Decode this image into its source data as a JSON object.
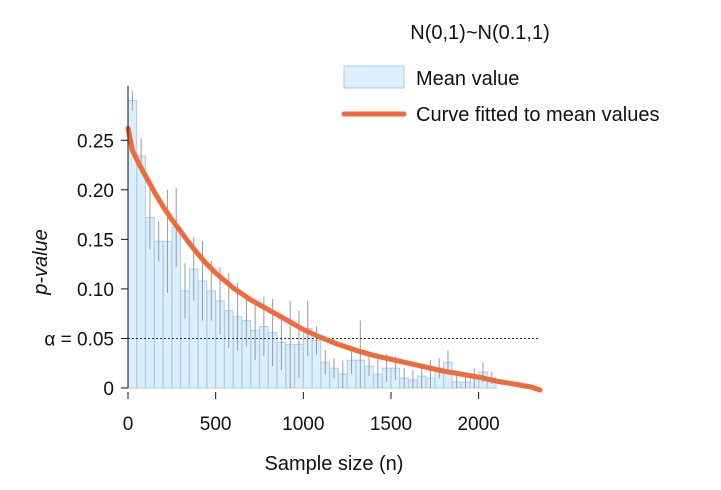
{
  "chart_data": {
    "type": "bar",
    "title": "N(0,1)~N(0.1,1)",
    "xlabel": "Sample size (n)",
    "ylabel": "p-value",
    "xlim": [
      0,
      2350
    ],
    "ylim": [
      0,
      0.31
    ],
    "xticks": [
      {
        "value": 0,
        "label": "0"
      },
      {
        "value": 500,
        "label": "500"
      },
      {
        "value": 1000,
        "label": "1000"
      },
      {
        "value": 1500,
        "label": "1500"
      },
      {
        "value": 2000,
        "label": "2000"
      }
    ],
    "yticks": [
      {
        "value": 0,
        "label": "0"
      },
      {
        "value": 0.05,
        "label": "α = 0.05"
      },
      {
        "value": 0.1,
        "label": "0.10"
      },
      {
        "value": 0.15,
        "label": "0.15"
      },
      {
        "value": 0.2,
        "label": "0.20"
      },
      {
        "value": 0.25,
        "label": "0.25"
      }
    ],
    "alpha_line": {
      "value": 0.05,
      "style": "dotted"
    },
    "grid": false,
    "legend_position": "top-right",
    "series": [
      {
        "name": "Mean value",
        "kind": "bar",
        "color": "#dcefff",
        "edge_color": "#a9cfee",
        "bar_width": 48,
        "x": [
          25,
          75,
          125,
          175,
          225,
          275,
          325,
          375,
          425,
          475,
          525,
          575,
          625,
          675,
          725,
          775,
          825,
          875,
          925,
          975,
          1025,
          1075,
          1125,
          1175,
          1225,
          1275,
          1325,
          1375,
          1425,
          1475,
          1525,
          1575,
          1625,
          1675,
          1725,
          1775,
          1825,
          1875,
          1925,
          1975,
          2025,
          2075
        ],
        "values": [
          0.29,
          0.234,
          0.172,
          0.148,
          0.148,
          0.162,
          0.098,
          0.12,
          0.108,
          0.098,
          0.088,
          0.078,
          0.072,
          0.068,
          0.058,
          0.062,
          0.056,
          0.046,
          0.044,
          0.044,
          0.06,
          0.048,
          0.026,
          0.02,
          0.014,
          0.028,
          0.028,
          0.022,
          0.014,
          0.02,
          0.02,
          0.01,
          0.008,
          0.012,
          0.01,
          0.02,
          0.026,
          0.006,
          0.006,
          0.01,
          0.016,
          0.01
        ],
        "error": [
          0.01,
          0.018,
          0.032,
          0.02,
          0.052,
          0.04,
          0.028,
          0.032,
          0.04,
          0.03,
          0.034,
          0.038,
          0.034,
          0.026,
          0.03,
          0.03,
          0.034,
          0.028,
          0.044,
          0.034,
          0.028,
          0.014,
          0.012,
          0.01,
          0.014,
          0.014,
          0.04,
          0.01,
          0.02,
          0.014,
          0.012,
          0.01,
          0.01,
          0.012,
          0.018,
          0.01,
          0.012,
          0.006,
          0.006,
          0.01,
          0.01,
          0.006
        ]
      },
      {
        "name": "Curve fitted to mean values",
        "kind": "line",
        "color": "#f06a3a",
        "x": [
          0,
          25,
          60,
          100,
          150,
          200,
          250,
          300,
          350,
          400,
          450,
          500,
          600,
          700,
          800,
          900,
          1000,
          1100,
          1200,
          1300,
          1400,
          1500,
          1600,
          1700,
          1800,
          1900,
          2000,
          2100,
          2200,
          2300,
          2350
        ],
        "y": [
          0.262,
          0.24,
          0.227,
          0.214,
          0.198,
          0.183,
          0.17,
          0.158,
          0.146,
          0.135,
          0.125,
          0.116,
          0.101,
          0.089,
          0.079,
          0.069,
          0.059,
          0.051,
          0.044,
          0.038,
          0.033,
          0.029,
          0.025,
          0.021,
          0.017,
          0.014,
          0.011,
          0.007,
          0.004,
          0.001,
          -0.002
        ]
      }
    ]
  }
}
